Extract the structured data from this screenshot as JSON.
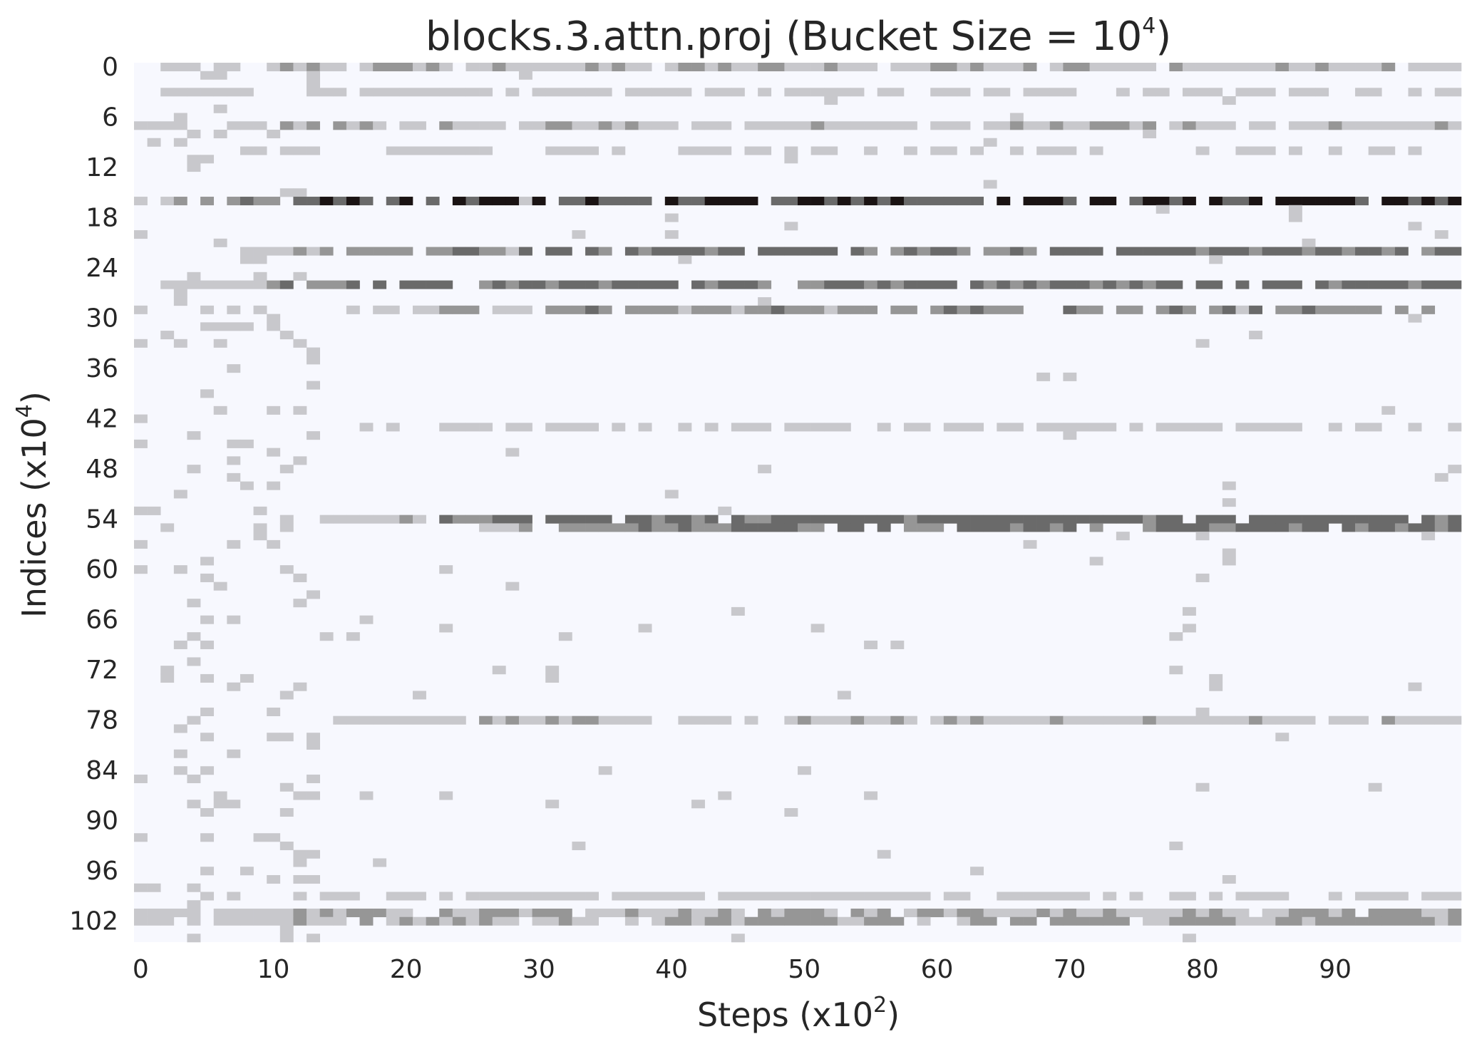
{
  "chart_data": {
    "type": "heatmap",
    "title": "blocks.3.attn.proj (Bucket Size = 10",
    "title_sup": "4",
    "title_suffix": ")",
    "xlabel": "Steps (x10",
    "xlabel_sup": "2",
    "xlabel_suffix": ")",
    "ylabel": "Indices (x10",
    "ylabel_sup": "4",
    "ylabel_suffix": ")",
    "x_ticks": [
      "0",
      "10",
      "20",
      "30",
      "40",
      "50",
      "60",
      "70",
      "80",
      "90"
    ],
    "y_ticks": [
      "0",
      "6",
      "12",
      "18",
      "24",
      "30",
      "36",
      "42",
      "48",
      "54",
      "60",
      "66",
      "72",
      "78",
      "84",
      "90",
      "96",
      "102"
    ],
    "n_steps": 100,
    "n_indices": 105,
    "grid": false,
    "colorbar": false,
    "colors": {
      "background": "#f7f8fe",
      "light": "#c8c8cc",
      "medium": "#969696",
      "dark": "#6a6a6a",
      "darkest": "#1a1313"
    },
    "bands": [
      {
        "row": 0,
        "start": 0,
        "end": 99,
        "intensity": 1.2
      },
      {
        "row": 3,
        "start": 2,
        "end": 99,
        "intensity": 0.9
      },
      {
        "row": 7,
        "start": 0,
        "end": 99,
        "intensity": 1.2
      },
      {
        "row": 10,
        "start": 8,
        "end": 99,
        "intensity": 0.3
      },
      {
        "row": 16,
        "start": 2,
        "end": 99,
        "intensity": 3.3
      },
      {
        "row": 22,
        "start": 8,
        "end": 99,
        "intensity": 2.5
      },
      {
        "row": 26,
        "start": 2,
        "end": 99,
        "intensity": 2.5
      },
      {
        "row": 29,
        "start": 16,
        "end": 99,
        "intensity": 1.9
      },
      {
        "row": 43,
        "start": 16,
        "end": 99,
        "intensity": 0.7
      },
      {
        "row": 54,
        "start": 14,
        "end": 99,
        "intensity": 2.6
      },
      {
        "row": 55,
        "start": 26,
        "end": 99,
        "intensity": 2.4
      },
      {
        "row": 78,
        "start": 14,
        "end": 99,
        "intensity": 1.2
      },
      {
        "row": 99,
        "start": 14,
        "end": 99,
        "intensity": 0.9
      },
      {
        "row": 101,
        "start": 0,
        "end": 99,
        "intensity": 1.4
      },
      {
        "row": 102,
        "start": 2,
        "end": 99,
        "intensity": 1.6
      }
    ]
  }
}
